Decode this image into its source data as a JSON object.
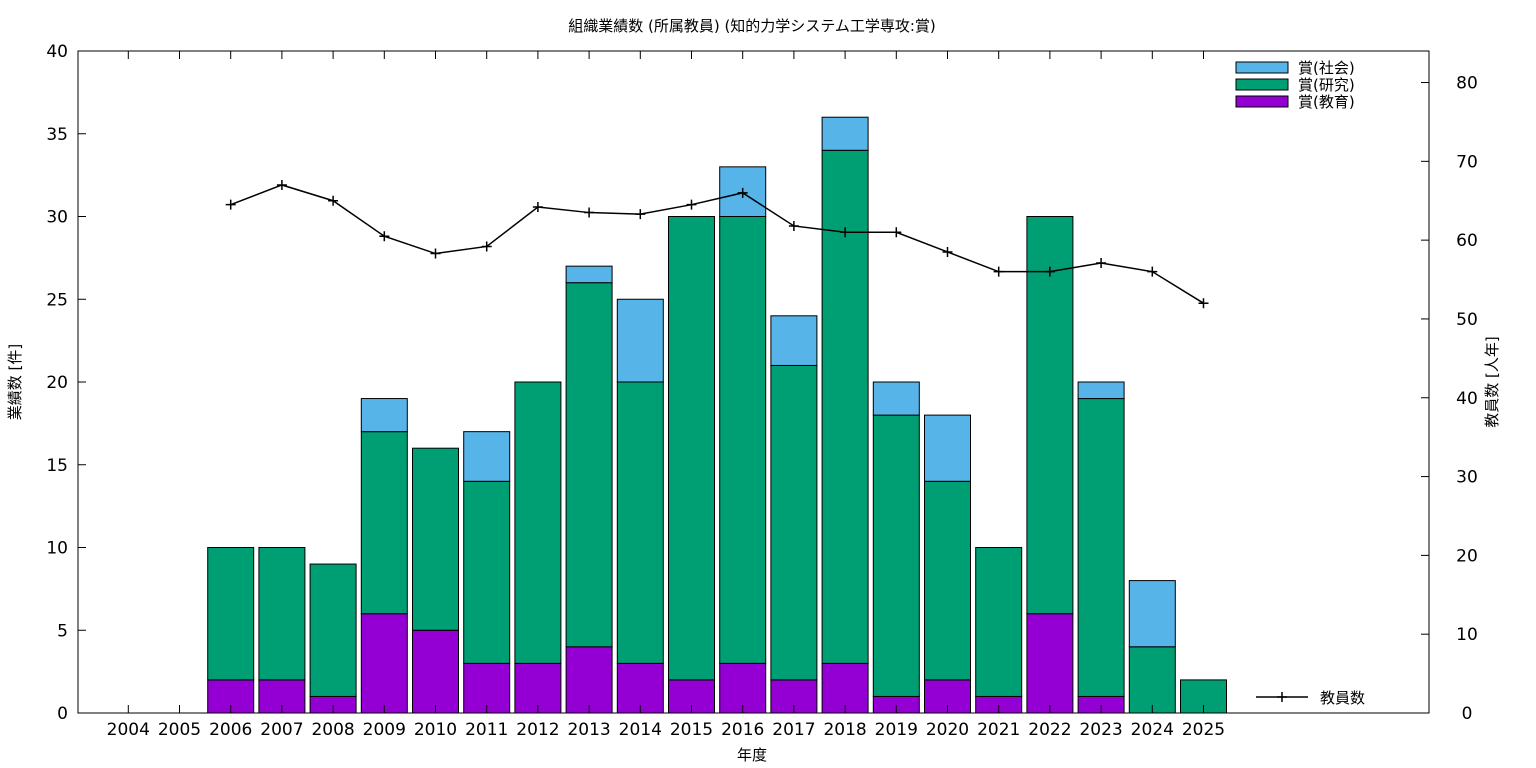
{
  "chart_data": {
    "type": "bar",
    "stacked": true,
    "title": "組織業績数 (所属教員) (知的力学システム工学専攻:賞)",
    "xlabel": "年度",
    "ylabel": "業績数 [件]",
    "y2label": "教員数 [人年]",
    "categories": [
      "2004",
      "2005",
      "2006",
      "2007",
      "2008",
      "2009",
      "2010",
      "2011",
      "2012",
      "2013",
      "2014",
      "2015",
      "2016",
      "2017",
      "2018",
      "2019",
      "2020",
      "2021",
      "2022",
      "2023",
      "2024",
      "2025"
    ],
    "series": [
      {
        "name": "賞(教育)",
        "color": "#9400d3",
        "values": [
          0,
          0,
          2,
          2,
          1,
          6,
          5,
          3,
          3,
          4,
          3,
          2,
          3,
          2,
          3,
          1,
          2,
          1,
          6,
          1,
          0,
          0
        ]
      },
      {
        "name": "賞(研究)",
        "color": "#009e73",
        "values": [
          0,
          0,
          8,
          8,
          8,
          11,
          11,
          11,
          17,
          22,
          17,
          28,
          27,
          19,
          31,
          17,
          12,
          9,
          24,
          18,
          4,
          2
        ]
      },
      {
        "name": "賞(社会)",
        "color": "#56b4e9",
        "values": [
          0,
          0,
          0,
          0,
          0,
          2,
          0,
          3,
          0,
          1,
          5,
          0,
          3,
          3,
          2,
          2,
          4,
          0,
          0,
          1,
          4,
          0
        ]
      }
    ],
    "line_series": {
      "name": "教員数",
      "axis": "y2",
      "x": [
        "2006",
        "2007",
        "2008",
        "2009",
        "2010",
        "2011",
        "2012",
        "2013",
        "2014",
        "2015",
        "2016",
        "2017",
        "2018",
        "2019",
        "2020",
        "2021",
        "2022",
        "2023",
        "2024",
        "2025"
      ],
      "values": [
        64.5,
        67,
        65,
        60.5,
        58.3,
        59.2,
        64.2,
        63.5,
        63.3,
        64.5,
        66,
        61.8,
        61,
        61,
        58.5,
        56,
        56,
        57.1,
        56,
        52
      ]
    },
    "ylim": [
      0,
      40
    ],
    "yticks": [
      0,
      5,
      10,
      15,
      20,
      25,
      30,
      35,
      40
    ],
    "y2lim": [
      0,
      84
    ],
    "y2ticks": [
      0,
      10,
      20,
      30,
      40,
      50,
      60,
      70,
      80
    ],
    "grid": false,
    "legend_position": "top-right",
    "line_legend_position": "bottom-right"
  }
}
